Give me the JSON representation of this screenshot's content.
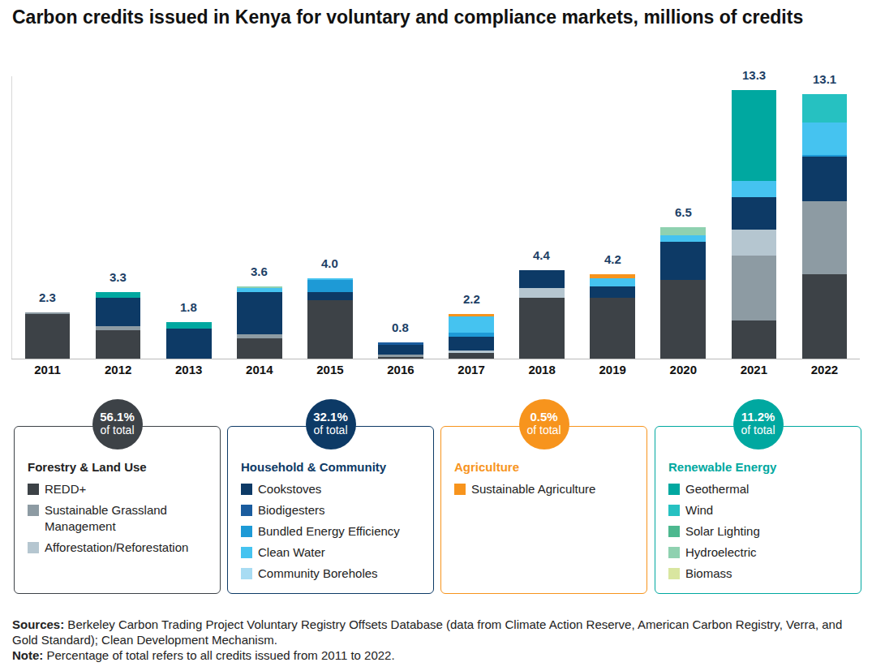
{
  "chart_data": {
    "type": "bar",
    "stacked": true,
    "title": "Carbon credits issued in Kenya for voluntary and compliance markets, millions of credits",
    "categories": [
      "2011",
      "2012",
      "2013",
      "2014",
      "2015",
      "2016",
      "2017",
      "2018",
      "2019",
      "2020",
      "2021",
      "2022"
    ],
    "totals": [
      2.3,
      3.3,
      1.8,
      3.6,
      4.0,
      0.8,
      2.2,
      4.4,
      4.2,
      6.5,
      13.3,
      13.1
    ],
    "totals_labels": [
      "2.3",
      "3.3",
      "1.8",
      "3.6",
      "4.0",
      "0.8",
      "2.2",
      "4.4",
      "4.2",
      "6.5",
      "13.3",
      "13.1"
    ],
    "series": [
      {
        "name": "REDD+",
        "group": "Forestry & Land Use",
        "color": "#3d4247",
        "values": [
          2.2,
          1.4,
          0,
          1.0,
          2.9,
          0.1,
          0.3,
          3.0,
          3.0,
          3.9,
          1.9,
          4.2
        ]
      },
      {
        "name": "Sustainable Grassland Management",
        "group": "Forestry & Land Use",
        "color": "#8d9ba3",
        "values": [
          0.1,
          0.2,
          0,
          0.2,
          0,
          0.1,
          0,
          0,
          0,
          0,
          3.2,
          3.6
        ]
      },
      {
        "name": "Afforestation/Reforestation",
        "group": "Forestry & Land Use",
        "color": "#b5c6d0",
        "values": [
          0,
          0,
          0,
          0,
          0,
          0,
          0.1,
          0.5,
          0,
          0,
          1.3,
          0
        ]
      },
      {
        "name": "Cookstoves",
        "group": "Household & Community",
        "color": "#0d3a66",
        "values": [
          0,
          1.4,
          1.5,
          2.1,
          0.4,
          0.5,
          0.7,
          0.9,
          0.6,
          1.9,
          1.6,
          2.2
        ]
      },
      {
        "name": "Biodigesters",
        "group": "Household & Community",
        "color": "#1a5c9e",
        "values": [
          0,
          0,
          0,
          0,
          0,
          0.1,
          0,
          0,
          0,
          0,
          0,
          0
        ]
      },
      {
        "name": "Bundled Energy Efficiency",
        "group": "Household & Community",
        "color": "#1e9ad6",
        "values": [
          0,
          0,
          0,
          0,
          0.6,
          0,
          0.2,
          0,
          0,
          0,
          0,
          0.1
        ]
      },
      {
        "name": "Clean Water",
        "group": "Household & Community",
        "color": "#45c3f0",
        "values": [
          0,
          0,
          0,
          0.2,
          0.1,
          0,
          0.8,
          0,
          0.4,
          0.3,
          0.8,
          1.6
        ]
      },
      {
        "name": "Community Boreholes",
        "group": "Household & Community",
        "color": "#a8dcf3",
        "values": [
          0,
          0,
          0,
          0,
          0,
          0,
          0,
          0,
          0,
          0,
          0,
          0
        ]
      },
      {
        "name": "Sustainable Agriculture",
        "group": "Agriculture",
        "color": "#f7941d",
        "values": [
          0,
          0,
          0,
          0,
          0,
          0,
          0.1,
          0,
          0.2,
          0,
          0,
          0
        ]
      },
      {
        "name": "Geothermal",
        "group": "Renewable Energy",
        "color": "#00a8a0",
        "values": [
          0,
          0.3,
          0.3,
          0,
          0,
          0,
          0,
          0,
          0,
          0,
          4.5,
          0
        ]
      },
      {
        "name": "Wind",
        "group": "Renewable Energy",
        "color": "#26c1c1",
        "values": [
          0,
          0,
          0,
          0,
          0,
          0,
          0,
          0,
          0,
          0,
          0,
          1.4
        ]
      },
      {
        "name": "Solar Lighting",
        "group": "Renewable Energy",
        "color": "#4db88f",
        "values": [
          0,
          0,
          0,
          0,
          0,
          0,
          0,
          0,
          0,
          0,
          0,
          0
        ]
      },
      {
        "name": "Hydroelectric",
        "group": "Renewable Energy",
        "color": "#8fd1b0",
        "values": [
          0,
          0,
          0,
          0.1,
          0,
          0,
          0,
          0,
          0,
          0.4,
          0,
          0
        ]
      },
      {
        "name": "Biomass",
        "group": "Renewable Energy",
        "color": "#d9e6a0",
        "values": [
          0,
          0,
          0,
          0,
          0,
          0,
          0,
          0,
          0,
          0,
          0,
          0
        ]
      }
    ],
    "ylim": [
      0,
      14
    ],
    "grid": false,
    "tick_labels": "x"
  },
  "groups": [
    {
      "name": "Forestry & Land Use",
      "share_label": "56.1%",
      "share_text": "of total",
      "color": "#3d4247"
    },
    {
      "name": "Household & Community",
      "share_label": "32.1%",
      "share_text": "of total",
      "color": "#0d3a66"
    },
    {
      "name": "Agriculture",
      "share_label": "0.5%",
      "share_text": "of total",
      "color": "#f7941d"
    },
    {
      "name": "Renewable Energy",
      "share_label": "11.2%",
      "share_text": "of total",
      "color": "#00a8a0"
    }
  ],
  "sources_label": "Sources:",
  "sources": "Berkeley Carbon Trading Project Voluntary Registry Offsets Database (data from Climate Action Reserve, American Carbon Registry, Verra, and Gold Standard); Clean Development Mechanism.",
  "note_label": "Note:",
  "note": "Percentage of total refers to all credits issued from 2011 to 2022."
}
